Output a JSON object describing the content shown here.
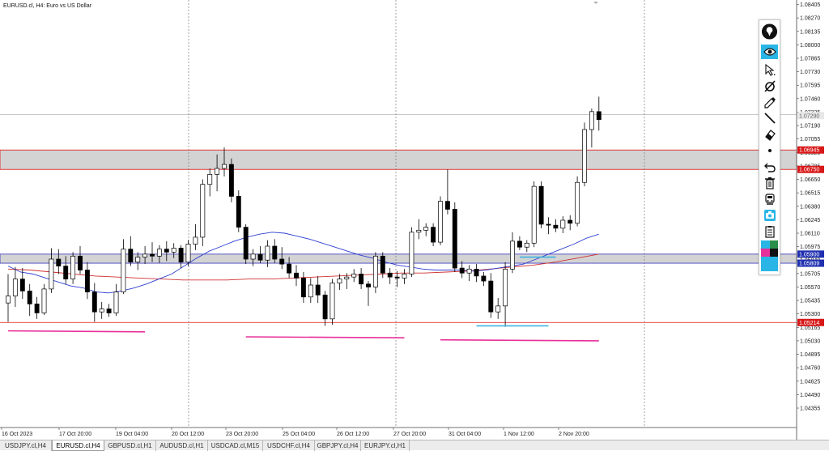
{
  "chart_title": "EURUSD.cl, H4:  Euro vs US Dollar",
  "chart_data": {
    "type": "candlestick",
    "symbol": "EURUSD.cl",
    "timeframe": "H4",
    "ylim": [
      1.0416,
      1.0845
    ],
    "y_ticks": [
      "1.08405",
      "1.08270",
      "1.08135",
      "1.08000",
      "1.07865",
      "1.07730",
      "1.07595",
      "1.07460",
      "1.07325",
      "1.07190",
      "1.07055",
      "1.06920",
      "1.06785",
      "1.06650",
      "1.06515",
      "1.06380",
      "1.06245",
      "1.06110",
      "1.05975",
      "1.05840",
      "1.05705",
      "1.05570",
      "1.05435",
      "1.05300",
      "1.05165",
      "1.05030",
      "1.04895",
      "1.04760",
      "1.04625",
      "1.04490",
      "1.04355"
    ],
    "x_ticks": [
      "16 Oct 2023",
      "17 Oct 20:00",
      "19 Oct 04:00",
      "20 Oct 12:00",
      "23 Oct 20:00",
      "25 Oct 04:00",
      "26 Oct 12:00",
      "27 Oct 20:00",
      "31 Oct 04:00",
      "1 Nov 12:00",
      "2 Nov 20:00"
    ],
    "price_labels": {
      "current": "1.07290",
      "zone_top_high": "1.06945",
      "zone_top_low": "1.06750",
      "zone_mid_high": "1.05900",
      "zone_mid_low": "1.05809",
      "support": "1.05214"
    },
    "zones": [
      {
        "high": 1.06945,
        "low": 1.0675,
        "color": "#d3d3d3"
      },
      {
        "high": 1.059,
        "low": 1.05809,
        "color": "#d3d3d3"
      }
    ],
    "horizontal_lines": [
      {
        "price": 1.05214,
        "color": "#e01010"
      },
      {
        "price": 1.073,
        "color": "#c0c0c0"
      }
    ],
    "candles": [
      {
        "o": 1.0541,
        "h": 1.057,
        "l": 1.0522,
        "c": 1.0548
      },
      {
        "o": 1.0548,
        "h": 1.0577,
        "l": 1.0537,
        "c": 1.0565
      },
      {
        "o": 1.0565,
        "h": 1.0576,
        "l": 1.0545,
        "c": 1.0553
      },
      {
        "o": 1.0553,
        "h": 1.056,
        "l": 1.0528,
        "c": 1.054
      },
      {
        "o": 1.054,
        "h": 1.0547,
        "l": 1.0525,
        "c": 1.0531
      },
      {
        "o": 1.0531,
        "h": 1.056,
        "l": 1.0529,
        "c": 1.0555
      },
      {
        "o": 1.0555,
        "h": 1.0596,
        "l": 1.0551,
        "c": 1.0585
      },
      {
        "o": 1.0585,
        "h": 1.0595,
        "l": 1.057,
        "c": 1.0578
      },
      {
        "o": 1.0578,
        "h": 1.0588,
        "l": 1.056,
        "c": 1.0565
      },
      {
        "o": 1.0565,
        "h": 1.0592,
        "l": 1.056,
        "c": 1.0588
      },
      {
        "o": 1.0588,
        "h": 1.0598,
        "l": 1.057,
        "c": 1.0574
      },
      {
        "o": 1.0574,
        "h": 1.0582,
        "l": 1.0545,
        "c": 1.0552
      },
      {
        "o": 1.0552,
        "h": 1.0561,
        "l": 1.0522,
        "c": 1.0532
      },
      {
        "o": 1.0532,
        "h": 1.0542,
        "l": 1.0525,
        "c": 1.0535
      },
      {
        "o": 1.0535,
        "h": 1.054,
        "l": 1.0527,
        "c": 1.0531
      },
      {
        "o": 1.0531,
        "h": 1.056,
        "l": 1.0528,
        "c": 1.0552
      },
      {
        "o": 1.0552,
        "h": 1.0605,
        "l": 1.055,
        "c": 1.0595
      },
      {
        "o": 1.0595,
        "h": 1.0608,
        "l": 1.0578,
        "c": 1.0582
      },
      {
        "o": 1.0582,
        "h": 1.0592,
        "l": 1.0574,
        "c": 1.0587
      },
      {
        "o": 1.0587,
        "h": 1.0598,
        "l": 1.058,
        "c": 1.059
      },
      {
        "o": 1.059,
        "h": 1.0602,
        "l": 1.0582,
        "c": 1.0588
      },
      {
        "o": 1.0588,
        "h": 1.0599,
        "l": 1.0581,
        "c": 1.0595
      },
      {
        "o": 1.0595,
        "h": 1.0603,
        "l": 1.0583,
        "c": 1.0592
      },
      {
        "o": 1.0592,
        "h": 1.0601,
        "l": 1.0586,
        "c": 1.0596
      },
      {
        "o": 1.0596,
        "h": 1.0599,
        "l": 1.0576,
        "c": 1.0582
      },
      {
        "o": 1.0582,
        "h": 1.0604,
        "l": 1.0578,
        "c": 1.06
      },
      {
        "o": 1.06,
        "h": 1.062,
        "l": 1.0594,
        "c": 1.0607
      },
      {
        "o": 1.0607,
        "h": 1.0665,
        "l": 1.0598,
        "c": 1.066
      },
      {
        "o": 1.066,
        "h": 1.0676,
        "l": 1.0648,
        "c": 1.067
      },
      {
        "o": 1.067,
        "h": 1.069,
        "l": 1.0653,
        "c": 1.0676
      },
      {
        "o": 1.0676,
        "h": 1.0697,
        "l": 1.0668,
        "c": 1.068
      },
      {
        "o": 1.068,
        "h": 1.0686,
        "l": 1.0642,
        "c": 1.0648
      },
      {
        "o": 1.0648,
        "h": 1.0654,
        "l": 1.0612,
        "c": 1.0617
      },
      {
        "o": 1.0617,
        "h": 1.062,
        "l": 1.058,
        "c": 1.0585
      },
      {
        "o": 1.0585,
        "h": 1.0595,
        "l": 1.0578,
        "c": 1.059
      },
      {
        "o": 1.059,
        "h": 1.0598,
        "l": 1.0581,
        "c": 1.0584
      },
      {
        "o": 1.0584,
        "h": 1.0604,
        "l": 1.0577,
        "c": 1.0598
      },
      {
        "o": 1.0598,
        "h": 1.0605,
        "l": 1.0581,
        "c": 1.0585
      },
      {
        "o": 1.0585,
        "h": 1.0597,
        "l": 1.0575,
        "c": 1.058
      },
      {
        "o": 1.058,
        "h": 1.0587,
        "l": 1.0566,
        "c": 1.0571
      },
      {
        "o": 1.0571,
        "h": 1.0579,
        "l": 1.0558,
        "c": 1.0566
      },
      {
        "o": 1.0566,
        "h": 1.0572,
        "l": 1.0541,
        "c": 1.0547
      },
      {
        "o": 1.0547,
        "h": 1.0566,
        "l": 1.0541,
        "c": 1.0559
      },
      {
        "o": 1.0559,
        "h": 1.0568,
        "l": 1.0541,
        "c": 1.0549
      },
      {
        "o": 1.0549,
        "h": 1.0553,
        "l": 1.0518,
        "c": 1.0525
      },
      {
        "o": 1.0525,
        "h": 1.0565,
        "l": 1.0519,
        "c": 1.0561
      },
      {
        "o": 1.0561,
        "h": 1.057,
        "l": 1.0554,
        "c": 1.0565
      },
      {
        "o": 1.0565,
        "h": 1.0571,
        "l": 1.0555,
        "c": 1.0567
      },
      {
        "o": 1.0567,
        "h": 1.0575,
        "l": 1.0562,
        "c": 1.057
      },
      {
        "o": 1.057,
        "h": 1.0576,
        "l": 1.0555,
        "c": 1.056
      },
      {
        "o": 1.056,
        "h": 1.0563,
        "l": 1.0538,
        "c": 1.0557
      },
      {
        "o": 1.0557,
        "h": 1.0592,
        "l": 1.0551,
        "c": 1.0588
      },
      {
        "o": 1.0588,
        "h": 1.0592,
        "l": 1.0566,
        "c": 1.0571
      },
      {
        "o": 1.0571,
        "h": 1.0576,
        "l": 1.056,
        "c": 1.0567
      },
      {
        "o": 1.0567,
        "h": 1.0573,
        "l": 1.0557,
        "c": 1.0566
      },
      {
        "o": 1.0566,
        "h": 1.0575,
        "l": 1.056,
        "c": 1.057
      },
      {
        "o": 1.057,
        "h": 1.0617,
        "l": 1.0567,
        "c": 1.0612
      },
      {
        "o": 1.0612,
        "h": 1.0625,
        "l": 1.0605,
        "c": 1.0614
      },
      {
        "o": 1.0614,
        "h": 1.0621,
        "l": 1.0608,
        "c": 1.0617
      },
      {
        "o": 1.0617,
        "h": 1.0621,
        "l": 1.0598,
        "c": 1.0602
      },
      {
        "o": 1.0602,
        "h": 1.0648,
        "l": 1.0599,
        "c": 1.0643
      },
      {
        "o": 1.0643,
        "h": 1.0675,
        "l": 1.063,
        "c": 1.0635
      },
      {
        "o": 1.0635,
        "h": 1.0642,
        "l": 1.0572,
        "c": 1.0576
      },
      {
        "o": 1.0576,
        "h": 1.0583,
        "l": 1.0566,
        "c": 1.0571
      },
      {
        "o": 1.0571,
        "h": 1.0579,
        "l": 1.0563,
        "c": 1.0575
      },
      {
        "o": 1.0575,
        "h": 1.058,
        "l": 1.0562,
        "c": 1.0568
      },
      {
        "o": 1.0568,
        "h": 1.0572,
        "l": 1.0558,
        "c": 1.0563
      },
      {
        "o": 1.0563,
        "h": 1.0571,
        "l": 1.0526,
        "c": 1.0532
      },
      {
        "o": 1.0532,
        "h": 1.0546,
        "l": 1.0525,
        "c": 1.0538
      },
      {
        "o": 1.0538,
        "h": 1.0582,
        "l": 1.0517,
        "c": 1.0575
      },
      {
        "o": 1.0575,
        "h": 1.0612,
        "l": 1.0571,
        "c": 1.0603
      },
      {
        "o": 1.0603,
        "h": 1.0608,
        "l": 1.0594,
        "c": 1.0597
      },
      {
        "o": 1.0597,
        "h": 1.0604,
        "l": 1.0592,
        "c": 1.0601
      },
      {
        "o": 1.0601,
        "h": 1.0663,
        "l": 1.0597,
        "c": 1.0658
      },
      {
        "o": 1.0658,
        "h": 1.0663,
        "l": 1.0616,
        "c": 1.062
      },
      {
        "o": 1.062,
        "h": 1.0627,
        "l": 1.061,
        "c": 1.0619
      },
      {
        "o": 1.0619,
        "h": 1.0625,
        "l": 1.0612,
        "c": 1.0616
      },
      {
        "o": 1.0616,
        "h": 1.0628,
        "l": 1.0611,
        "c": 1.0624
      },
      {
        "o": 1.0624,
        "h": 1.0629,
        "l": 1.0614,
        "c": 1.0621
      },
      {
        "o": 1.0621,
        "h": 1.0668,
        "l": 1.0618,
        "c": 1.0662
      },
      {
        "o": 1.0662,
        "h": 1.0722,
        "l": 1.0658,
        "c": 1.0715
      },
      {
        "o": 1.0715,
        "h": 1.0736,
        "l": 1.0697,
        "c": 1.0733
      },
      {
        "o": 1.0733,
        "h": 1.0748,
        "l": 1.0714,
        "c": 1.0725
      }
    ],
    "ma_blue": [
      1.0578,
      1.0572,
      1.057,
      1.0566,
      1.0562,
      1.0558,
      1.0556,
      1.0552,
      1.0551,
      1.0553,
      1.0556,
      1.056,
      1.0565,
      1.057,
      1.0578,
      1.0586,
      1.0593,
      1.0598,
      1.0603,
      1.0607,
      1.061,
      1.0612,
      1.0611,
      1.0608,
      1.0605,
      1.0601,
      1.0597,
      1.0593,
      1.0589,
      1.0586,
      1.0582,
      1.0579,
      1.0577,
      1.0575,
      1.0574,
      1.0574,
      1.0574,
      1.0573,
      1.0574,
      1.0576,
      1.0578,
      1.058,
      1.0585,
      1.059,
      1.0595,
      1.06,
      1.0606,
      1.061
    ],
    "ma_red": [
      1.0575,
      1.0574,
      1.0572,
      1.057,
      1.0568,
      1.0567,
      1.0566,
      1.0565,
      1.0564,
      1.0564,
      1.0564,
      1.0565,
      1.0565,
      1.0566,
      1.0567,
      1.0568,
      1.0569,
      1.057,
      1.0571,
      1.0571,
      1.0572,
      1.0573,
      1.0575,
      1.0577,
      1.0579,
      1.0582,
      1.0586,
      1.059
    ],
    "annotation_lines": [
      {
        "color": "#e8309a",
        "from": [
          0,
          1.0513
        ],
        "to": [
          19,
          1.0512
        ]
      },
      {
        "color": "#e8309a",
        "from": [
          33,
          1.0507
        ],
        "to": [
          55,
          1.0506
        ]
      },
      {
        "color": "#e8309a",
        "from": [
          60,
          1.0504
        ],
        "to": [
          82,
          1.0503
        ]
      },
      {
        "color": "#40b4e0",
        "from": [
          65,
          1.0518
        ],
        "to": [
          75,
          1.0518
        ]
      },
      {
        "color": "#40b4e0",
        "from": [
          71,
          1.0587
        ],
        "to": [
          76,
          1.0587
        ]
      }
    ]
  },
  "tabs": [
    "USDJPY.cl,H4",
    "EURUSD.cl,H4",
    "GBPUSD.cl,H1",
    "AUDUSD.cl,H1",
    "USDCAD.cl,M15",
    "USDCHF.cl,H4",
    "GBPJPY.cl,H4",
    "EURJPY.cl,H1"
  ],
  "active_tab": 1,
  "toolbar": {
    "items": [
      "location-pin-icon",
      "eye-icon",
      "cursor-arrow-icon",
      "crossed-circle-icon",
      "pencil-icon",
      "line-tool-icon",
      "eraser-icon",
      "dot-icon",
      "undo-icon",
      "trash-icon",
      "train-icon",
      "camera-icon",
      "clipboard-icon",
      "color-swatches"
    ],
    "colors": [
      "#2a8f4a",
      "#e8309a",
      "#111111",
      "#29b6e6"
    ]
  }
}
